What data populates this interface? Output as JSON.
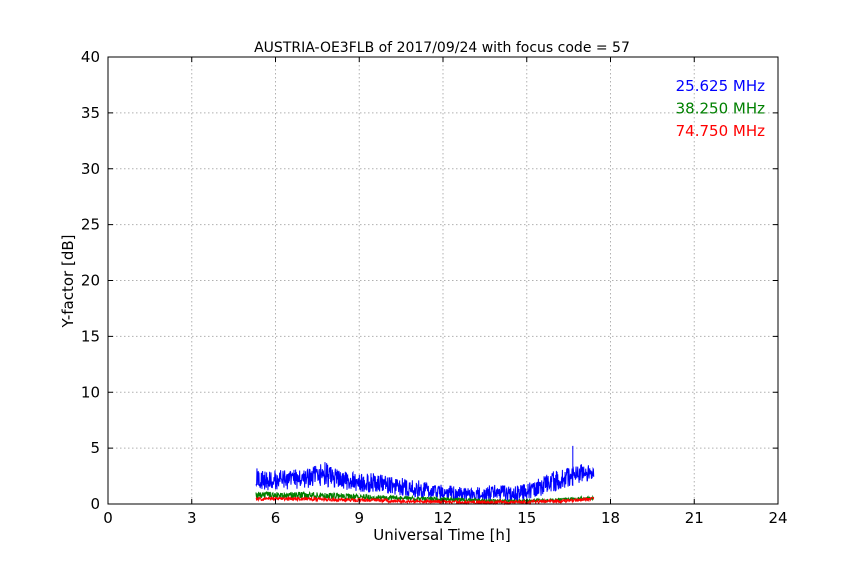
{
  "chart_data": {
    "type": "line",
    "title": "AUSTRIA-OE3FLB of 2017/09/24 with focus code = 57",
    "xlabel": "Universal Time [h]",
    "ylabel": "Y-factor [dB]",
    "xlim": [
      0,
      24
    ],
    "ylim": [
      0,
      40
    ],
    "xticks": [
      0,
      3,
      6,
      9,
      12,
      15,
      18,
      21,
      24
    ],
    "yticks": [
      0,
      5,
      10,
      15,
      20,
      25,
      30,
      35,
      40
    ],
    "grid": true,
    "legend_position": "top-right",
    "series": [
      {
        "name": "25.625 MHz",
        "color": "#0000ff",
        "x": [
          5.3,
          6.0,
          6.5,
          7.0,
          7.5,
          7.7,
          8.0,
          8.5,
          9.0,
          9.5,
          10.0,
          10.5,
          11.0,
          11.5,
          12.0,
          12.5,
          13.0,
          13.5,
          14.0,
          14.5,
          15.0,
          15.5,
          16.0,
          16.5,
          17.0,
          17.4
        ],
        "min": [
          1.0,
          1.3,
          1.3,
          1.4,
          1.5,
          1.6,
          1.4,
          1.2,
          1.1,
          1.0,
          0.9,
          0.7,
          0.6,
          0.5,
          0.4,
          0.3,
          0.3,
          0.3,
          0.3,
          0.2,
          0.4,
          0.7,
          1.1,
          1.5,
          1.9,
          2.0
        ],
        "max": [
          3.2,
          3.1,
          3.0,
          3.2,
          3.5,
          4.1,
          3.3,
          3.0,
          2.7,
          2.8,
          2.5,
          2.4,
          2.2,
          1.9,
          1.7,
          1.6,
          1.5,
          1.6,
          1.8,
          1.5,
          2.0,
          2.4,
          3.0,
          3.3,
          3.6,
          3.5
        ],
        "peaks": [
          [
            16.65,
            5.2
          ]
        ]
      },
      {
        "name": "38.250 MHz",
        "color": "#008000",
        "x": [
          5.3,
          7.0,
          9.0,
          11.0,
          13.0,
          14.5,
          16.0,
          17.4
        ],
        "min": [
          0.5,
          0.5,
          0.4,
          0.3,
          0.2,
          0.1,
          0.2,
          0.4
        ],
        "max": [
          1.1,
          1.1,
          0.9,
          0.7,
          0.5,
          0.4,
          0.5,
          0.7
        ]
      },
      {
        "name": "74.750 MHz",
        "color": "#ff0000",
        "x": [
          5.3,
          7.0,
          9.0,
          11.0,
          13.0,
          14.5,
          16.0,
          17.4
        ],
        "min": [
          0.3,
          0.3,
          0.2,
          0.1,
          0.0,
          0.0,
          0.1,
          0.3
        ],
        "max": [
          0.6,
          0.6,
          0.5,
          0.4,
          0.3,
          0.3,
          0.4,
          0.6
        ]
      }
    ]
  }
}
